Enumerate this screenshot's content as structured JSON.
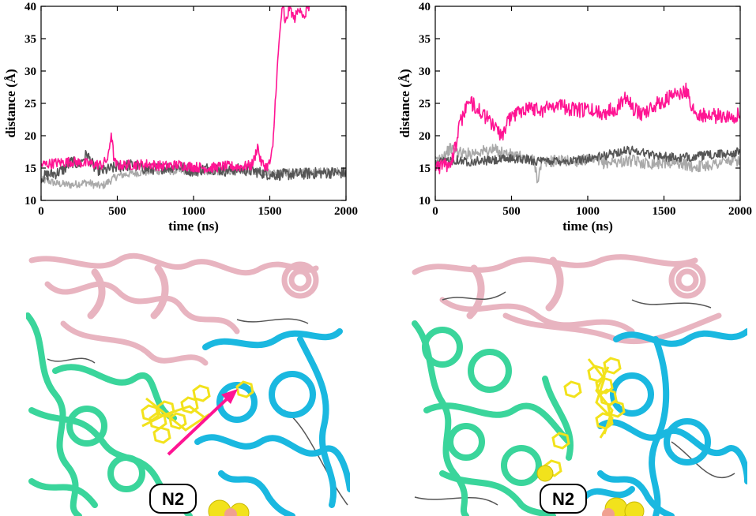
{
  "chart_data": [
    {
      "type": "line",
      "xlabel": "time (ns)",
      "ylabel": "distance (Å)",
      "xlim": [
        0,
        2000
      ],
      "ylim": [
        10,
        40
      ],
      "xticks": [
        0,
        500,
        1000,
        1500,
        2000
      ],
      "yticks": [
        10,
        15,
        20,
        25,
        30,
        35,
        40
      ],
      "grid": false,
      "series": [
        {
          "color": "#a9a9a9",
          "jitter": 0.6,
          "x": [
            0,
            50,
            100,
            150,
            200,
            250,
            300,
            350,
            400,
            500,
            600,
            700,
            800,
            900,
            1000,
            1100,
            1200,
            1300,
            1400,
            1500,
            1600,
            1700,
            1800,
            1900,
            2000
          ],
          "y": [
            13.2,
            13.0,
            12.6,
            12.5,
            12.4,
            12.6,
            12.8,
            12.4,
            12.2,
            13.8,
            14.2,
            14.4,
            14.6,
            14.5,
            14.6,
            14.5,
            14.5,
            14.6,
            14.6,
            14.3,
            14.3,
            14.4,
            14.4,
            14.5,
            14.5
          ]
        },
        {
          "color": "#555555",
          "jitter": 0.9,
          "x": [
            0,
            50,
            100,
            150,
            200,
            250,
            300,
            350,
            400,
            500,
            600,
            700,
            800,
            900,
            1000,
            1100,
            1200,
            1300,
            1400,
            1500,
            1600,
            1700,
            1800,
            1900,
            2000
          ],
          "y": [
            13.5,
            14.0,
            14.2,
            14.8,
            16.0,
            15.5,
            17.2,
            15.0,
            14.5,
            15.2,
            15.5,
            14.8,
            15.0,
            15.3,
            14.5,
            15.0,
            14.6,
            14.8,
            14.5,
            14.0,
            14.0,
            14.1,
            14.2,
            14.3,
            14.2
          ]
        },
        {
          "color": "#ff1493",
          "jitter": 0.8,
          "x": [
            0,
            100,
            200,
            300,
            400,
            440,
            460,
            480,
            500,
            600,
            700,
            800,
            900,
            1000,
            1100,
            1200,
            1300,
            1380,
            1400,
            1420,
            1440,
            1460,
            1480,
            1500,
            1520,
            1540,
            1560,
            1575,
            1590,
            1600,
            1630,
            1660,
            1700,
            1730,
            1740,
            1760
          ],
          "y": [
            15.5,
            15.8,
            16.0,
            15.7,
            15.5,
            16.5,
            20.5,
            16.0,
            15.4,
            15.5,
            15.6,
            15.3,
            15.5,
            15.2,
            15.0,
            15.3,
            15.2,
            15.4,
            16.5,
            18.5,
            16.0,
            15.5,
            15.2,
            15.8,
            18.0,
            27.0,
            34.0,
            38.5,
            40.0,
            37.0,
            40.0,
            38.0,
            40.0,
            37.5,
            40.0,
            40.0
          ]
        }
      ]
    },
    {
      "type": "line",
      "xlabel": "time (ns)",
      "ylabel": "distance (Å)",
      "xlim": [
        0,
        2000
      ],
      "ylim": [
        10,
        40
      ],
      "xticks": [
        0,
        500,
        1000,
        1500,
        2000
      ],
      "yticks": [
        10,
        15,
        20,
        25,
        30,
        35,
        40
      ],
      "grid": false,
      "series": [
        {
          "color": "#a9a9a9",
          "jitter": 0.9,
          "x": [
            0,
            50,
            100,
            150,
            200,
            300,
            400,
            500,
            600,
            650,
            670,
            700,
            800,
            900,
            1000,
            1100,
            1200,
            1300,
            1400,
            1500,
            1600,
            1700,
            1800,
            1900,
            2000
          ],
          "y": [
            16.0,
            17.0,
            18.0,
            17.5,
            17.2,
            17.6,
            17.8,
            17.0,
            16.5,
            16.2,
            13.2,
            15.8,
            16.2,
            16.0,
            16.3,
            15.8,
            16.0,
            16.1,
            15.7,
            15.9,
            15.8,
            15.2,
            15.5,
            16.0,
            16.2
          ]
        },
        {
          "color": "#555555",
          "jitter": 0.7,
          "x": [
            0,
            50,
            100,
            150,
            200,
            300,
            400,
            500,
            600,
            700,
            800,
            900,
            1000,
            1100,
            1200,
            1300,
            1400,
            1500,
            1600,
            1700,
            1800,
            1900,
            2000
          ],
          "y": [
            15.5,
            16.0,
            16.2,
            16.3,
            16.0,
            16.1,
            16.2,
            16.5,
            16.3,
            16.0,
            16.2,
            16.1,
            16.5,
            16.8,
            17.5,
            17.8,
            17.2,
            16.8,
            16.5,
            16.8,
            17.0,
            17.2,
            17.5
          ]
        },
        {
          "color": "#ff1493",
          "jitter": 1.2,
          "x": [
            0,
            50,
            100,
            130,
            160,
            200,
            250,
            300,
            350,
            400,
            450,
            480,
            500,
            600,
            700,
            800,
            900,
            1000,
            1100,
            1200,
            1260,
            1300,
            1350,
            1400,
            1500,
            1600,
            1650,
            1700,
            1800,
            1900,
            2000
          ],
          "y": [
            15.5,
            15.2,
            16.0,
            18.0,
            21.5,
            24.5,
            25.0,
            23.5,
            22.5,
            21.0,
            20.0,
            22.5,
            23.0,
            24.5,
            24.0,
            25.0,
            24.0,
            24.0,
            23.5,
            24.5,
            26.5,
            24.0,
            23.5,
            24.0,
            25.5,
            26.5,
            27.0,
            23.5,
            23.0,
            23.0,
            23.2
          ]
        }
      ]
    }
  ],
  "images": {
    "left_badge": "N2",
    "right_badge": "N2",
    "colors": {
      "pink_ribbon": "#e8b4c0",
      "green_ribbon": "#3ad59b",
      "cyan_ribbon": "#1ab8e0",
      "ligand_yellow": "#f2e21c",
      "arrow_magenta": "#ff1493"
    }
  }
}
